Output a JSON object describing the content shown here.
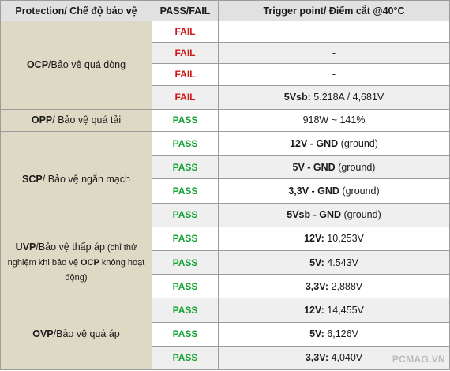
{
  "header": {
    "protection": "Protection/ Chế độ bảo vệ",
    "result": "PASS/FAIL",
    "trigger": "Trigger point/ Điểm cắt @40°C"
  },
  "groups": [
    {
      "abbr": "OCP",
      "desc": "/Bảo vệ quá dòng",
      "note": "",
      "rows": [
        {
          "result": "FAIL",
          "label": "",
          "value": "-"
        },
        {
          "result": "FAIL",
          "label": "",
          "value": "-"
        },
        {
          "result": "FAIL",
          "label": "",
          "value": "-"
        },
        {
          "result": "FAIL",
          "label": "5Vsb:",
          "value": " 5.218A / 4,681V"
        }
      ]
    },
    {
      "abbr": "OPP",
      "desc": "/ Bảo vệ quá tải",
      "note": "",
      "rows": [
        {
          "result": "PASS",
          "label": "",
          "value": "918W ~ 141%"
        }
      ]
    },
    {
      "abbr": "SCP",
      "desc": "/ Bảo vệ ngắn mạch",
      "note": "",
      "rows": [
        {
          "result": "PASS",
          "label": "12V - GND",
          "value": " (ground)"
        },
        {
          "result": "PASS",
          "label": "5V - GND",
          "value": " (ground)"
        },
        {
          "result": "PASS",
          "label": "3,3V - GND",
          "value": " (ground)"
        },
        {
          "result": "PASS",
          "label": "5Vsb - GND",
          "value": " (ground)"
        }
      ]
    },
    {
      "abbr": "UVP",
      "desc": "/Bảo vệ thấp áp",
      "note_pre": " (chỉ thử nghiệm khi bảo vệ ",
      "note_bold": "OCP",
      "note_post": " không hoạt động)",
      "rows": [
        {
          "result": "PASS",
          "label": "12V:",
          "value": " 10,253V"
        },
        {
          "result": "PASS",
          "label": "5V:",
          "value": " 4.543V"
        },
        {
          "result": "PASS",
          "label": "3,3V:",
          "value": " 2,888V"
        }
      ]
    },
    {
      "abbr": "OVP",
      "desc": "/Bảo vệ quá áp",
      "note": "",
      "rows": [
        {
          "result": "PASS",
          "label": "12V:",
          "value": " 14,455V"
        },
        {
          "result": "PASS",
          "label": "5V:",
          "value": " 6,126V"
        },
        {
          "result": "PASS",
          "label": "3,3V:",
          "value": " 4,040V"
        }
      ]
    }
  ],
  "watermark": "PCMAG.VN",
  "colors": {
    "fail": "#d01818",
    "pass": "#14a332",
    "category_bg": "#ddd9c4",
    "header_bg": "#e1e1e1"
  }
}
